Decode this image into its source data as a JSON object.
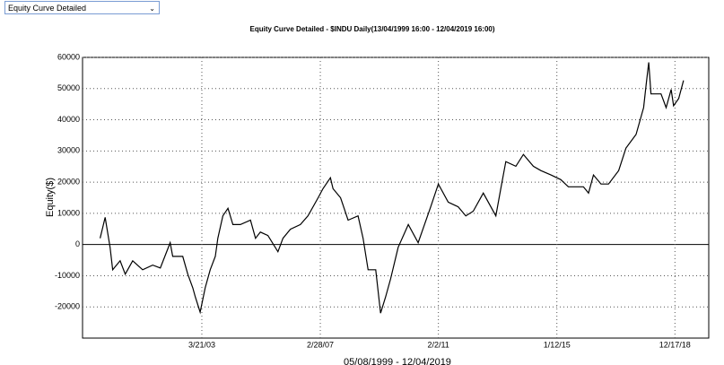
{
  "dropdown": {
    "label": "Equity Curve Detailed"
  },
  "chart_data": {
    "type": "line",
    "title": "Equity Curve Detailed - $INDU Daily(13/04/1999 16:00 - 12/04/2019 16:00)",
    "ylabel": "Equity($)",
    "xlabel": "05/08/1999 - 12/04/2019",
    "x": [
      "11/1/99",
      "1/1/00",
      "3/1/00",
      "4/1/00",
      "7/1/00",
      "9/1/00",
      "12/1/00",
      "4/1/01",
      "8/1/01",
      "11/1/01",
      "3/1/02",
      "4/1/02",
      "8/1/02",
      "10/1/02",
      "12/1/02",
      "1/1/03",
      "3/1/03",
      "5/1/03",
      "7/1/03",
      "9/1/03",
      "10/1/03",
      "12/1/03",
      "2/1/04",
      "4/1/04",
      "7/1/04",
      "11/1/04",
      "1/1/05",
      "3/1/05",
      "6/1/05",
      "10/1/05",
      "12/1/05",
      "3/1/06",
      "7/1/06",
      "10/1/06",
      "2/1/07",
      "4/1/07",
      "7/1/07",
      "8/1/07",
      "11/1/07",
      "2/1/08",
      "6/1/08",
      "8/1/08",
      "10/1/08",
      "1/1/09",
      "3/1/09",
      "5/1/09",
      "7/1/09",
      "10/1/09",
      "2/1/10",
      "6/1/10",
      "11/1/10",
      "2/1/11",
      "6/1/11",
      "10/1/11",
      "1/1/12",
      "4/1/12",
      "8/1/12",
      "1/1/13",
      "3/1/13",
      "5/1/13",
      "9/1/13",
      "12/1/13",
      "4/1/14",
      "7/1/14",
      "11/1/14",
      "3/1/15",
      "6/1/15",
      "12/1/15",
      "2/1/16",
      "4/1/16",
      "7/1/16",
      "10/1/16",
      "2/1/17",
      "5/1/17",
      "9/1/17",
      "12/1/17",
      "1/1/18",
      "2/1/18",
      "3/1/18",
      "7/1/18",
      "9/1/18",
      "11/1/18",
      "12/1/18",
      "2/1/19",
      "4/1/19"
    ],
    "series": [
      {
        "name": "Equity",
        "color": "#000000",
        "values": [
          2000,
          8700,
          -900,
          -8100,
          -5200,
          -9500,
          -5200,
          -8100,
          -6600,
          -7500,
          600,
          -3800,
          -3800,
          -9500,
          -13900,
          -16800,
          -21700,
          -13900,
          -8100,
          -3800,
          2000,
          9200,
          11600,
          6400,
          6400,
          7800,
          2000,
          4000,
          2900,
          -2300,
          2000,
          4900,
          6400,
          9200,
          15000,
          17900,
          21400,
          17900,
          15000,
          7800,
          9200,
          2000,
          -8100,
          -8100,
          -22000,
          -16800,
          -11000,
          -900,
          6400,
          600,
          12100,
          19400,
          13600,
          12100,
          9200,
          10700,
          16500,
          9200,
          17900,
          26600,
          25100,
          28900,
          25100,
          23700,
          22300,
          20800,
          18500,
          18500,
          16500,
          22300,
          19400,
          19400,
          23700,
          30900,
          35300,
          43900,
          51200,
          58400,
          48300,
          48300,
          43900,
          49700,
          44500,
          46800,
          52600
        ]
      }
    ],
    "xlim": [
      "4/1/99",
      "2/1/20"
    ],
    "xticks": [
      "3/21/03",
      "2/28/07",
      "2/2/11",
      "1/12/15",
      "12/17/18"
    ],
    "ylim": [
      -30000,
      60000
    ],
    "yticks": [
      -20000,
      -10000,
      0,
      10000,
      20000,
      30000,
      40000,
      50000,
      60000
    ],
    "grid": true
  }
}
